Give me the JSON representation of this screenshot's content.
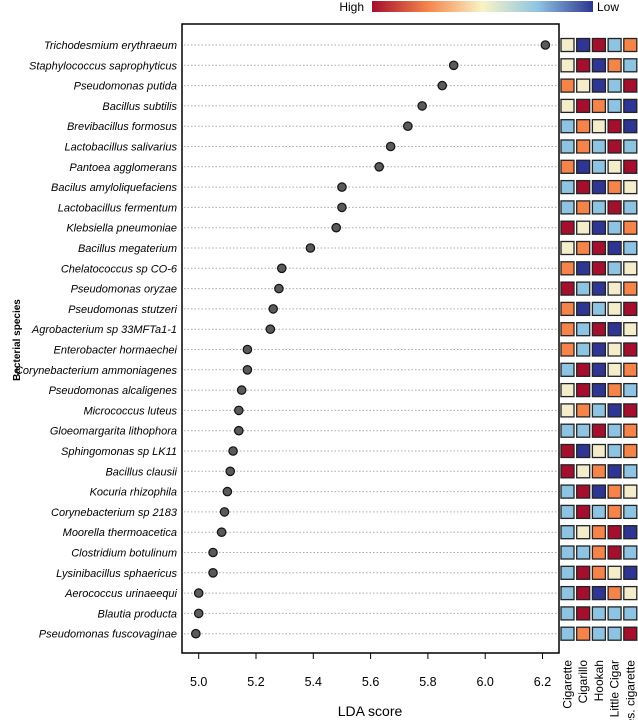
{
  "chart_data": {
    "type": "scatter",
    "title": "",
    "xlabel": "LDA score",
    "ylabel": "Bacterial species",
    "xlim": [
      4.98,
      6.24
    ],
    "xticks": [
      "5.0",
      "5.2",
      "5.4",
      "5.6",
      "5.8",
      "6.0",
      "6.2"
    ],
    "grid": "horizontal dotted",
    "categories": [
      "Trichodesmium erythraeum",
      "Staphylococcus saprophyticus",
      "Pseudomonas putida",
      "Bacillus subtilis",
      "Brevibacillus formosus",
      "Lactobacillus salivarius",
      "Pantoea agglomerans",
      "Bacilus amyloliquefaciens",
      "Lactobacillus fermentum",
      "Klebsiella pneumoniae",
      "Bacillus megaterium",
      "Chelatococcus sp CO-6",
      "Pseudomonas oryzae",
      "Pseudomonas stutzeri",
      "Agrobacterium sp 33MFTa1-1",
      "Enterobacter hormaechei",
      "Corynebacterium ammoniagenes",
      "Pseudomonas alcaligenes",
      "Micrococcus luteus",
      "Gloeomargarita lithophora",
      "Sphingomonas sp LK11",
      "Bacillus clausii",
      "Kocuria rhizophila",
      "Corynebacterium sp 2183",
      "Moorella thermoacetica",
      "Clostridium botulinum",
      "Lysinibacillus sphaericus",
      "Aerococcus urinaeequi",
      "Blautia producta",
      "Pseudomonas fuscovaginae"
    ],
    "values": [
      6.21,
      5.89,
      5.85,
      5.78,
      5.73,
      5.67,
      5.63,
      5.5,
      5.5,
      5.48,
      5.39,
      5.29,
      5.28,
      5.26,
      5.25,
      5.17,
      5.17,
      5.15,
      5.14,
      5.14,
      5.12,
      5.11,
      5.1,
      5.09,
      5.08,
      5.05,
      5.05,
      5.0,
      5.0,
      4.99
    ],
    "heatmap": {
      "columns": [
        "Cigarette",
        "Cigarillo",
        "Hookah",
        "Little Cigar",
        "Res. cigarette"
      ],
      "levels_legend": {
        "high_label": "High",
        "low_label": "Low"
      },
      "level_key": {
        "R": "highest",
        "O": "high",
        "Y": "middle",
        "L": "low",
        "B": "lowest"
      },
      "rows": [
        "YBRLO",
        "YRBOL",
        "OYBLR",
        "YROLB",
        "LOYRB",
        "LOLRL",
        "OBLYR",
        "LRBOY",
        "LOLRL",
        "RYBLO",
        "YORBL",
        "OBRLY",
        "RLBYO",
        "OBLYR",
        "OLRBY",
        "OLBYR",
        "LRBYO",
        "YRBOL",
        "YOLBR",
        "LLRLO",
        "RBYLO",
        "RYOBL",
        "LRBOY",
        "LRLOL",
        "LYORB",
        "LLORL",
        "LROYB",
        "LRBOY",
        "LRLLL",
        "LOLLR"
      ]
    }
  },
  "colors": {
    "R": "#a50f2e",
    "O": "#f4844a",
    "Y": "#f3edcb",
    "L": "#8ec4e2",
    "B": "#2e3592",
    "dot": "#5a5a5a"
  }
}
